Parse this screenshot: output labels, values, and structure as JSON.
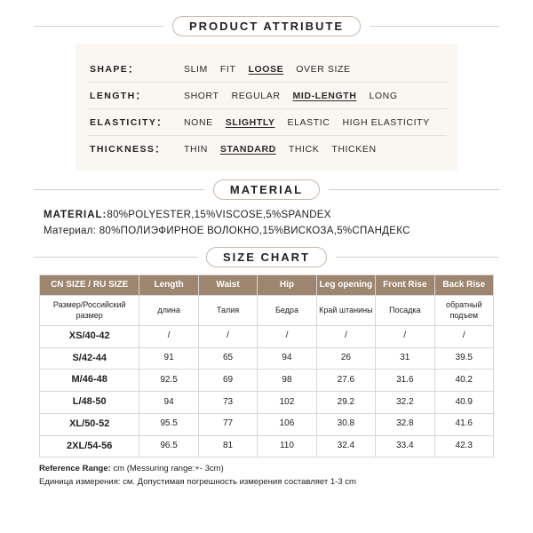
{
  "sections": {
    "attribute_title": "PRODUCT ATTRIBUTE",
    "material_title": "MATERIAL",
    "size_title": "SIZE CHART"
  },
  "attributes": {
    "shape": {
      "label": "SHAPE：",
      "opts": [
        "SLIM",
        "FIT",
        "LOOSE",
        "OVER SIZE"
      ],
      "selected": 2
    },
    "length": {
      "label": "LENGTH：",
      "opts": [
        "SHORT",
        "REGULAR",
        "MID-LENGTH",
        "LONG"
      ],
      "selected": 2
    },
    "elasticity": {
      "label": "ELASTICITY：",
      "opts": [
        "NONE",
        "SLIGHTLY",
        "ELASTIC",
        "HIGH ELASTICITY"
      ],
      "selected": 1
    },
    "thickness": {
      "label": "THICKNESS：",
      "opts": [
        "THIN",
        "STANDARD",
        "THICK",
        "THICKEN"
      ],
      "selected": 1
    }
  },
  "material": {
    "en_label": "MATERIAL:",
    "en_value": "80%POLYESTER,15%VISCOSE,5%SPANDEX",
    "ru_label": "Материал:",
    "ru_value": " 80%ПОЛИЭФИРНОЕ ВОЛОКНО,15%ВИСКОЗА,5%СПАНДЕКС"
  },
  "size_chart": {
    "headers_en": [
      "CN SIZE / RU SIZE",
      "Length",
      "Waist",
      "Hip",
      "Leg opening",
      "Front Rise",
      "Back Rise"
    ],
    "headers_ru": [
      "Размер/Российский размер",
      "длина",
      "Талия",
      "Бедра",
      "Край штанины",
      "Посадка",
      "обратный подъем"
    ],
    "col_widths_pct": [
      22,
      13,
      13,
      13,
      13,
      13,
      13
    ],
    "rows": [
      {
        "size": "XS/40-42",
        "vals": [
          "/",
          "/",
          "/",
          "/",
          "/",
          "/"
        ]
      },
      {
        "size": "S/42-44",
        "vals": [
          "91",
          "65",
          "94",
          "26",
          "31",
          "39.5"
        ]
      },
      {
        "size": "M/46-48",
        "vals": [
          "92.5",
          "69",
          "98",
          "27.6",
          "31.6",
          "40.2"
        ]
      },
      {
        "size": "L/48-50",
        "vals": [
          "94",
          "73",
          "102",
          "29.2",
          "32.2",
          "40.9"
        ]
      },
      {
        "size": "XL/50-52",
        "vals": [
          "95.5",
          "77",
          "106",
          "30.8",
          "32.8",
          "41.6"
        ]
      },
      {
        "size": "2XL/54-56",
        "vals": [
          "96.5",
          "81",
          "110",
          "32.4",
          "33.4",
          "42.3"
        ]
      }
    ]
  },
  "reference": {
    "en_label": "Reference Range:",
    "en_value": " cm (Messuring range:+- 3cm)",
    "ru": "Единица измерения: см. Допустимая погрешность измерения составляет 1-3 cm"
  },
  "colors": {
    "background": "#ffffff",
    "attr_panel_bg": "#faf6f1",
    "pill_border": "#c9b8aa",
    "table_header_bg": "#9d8570",
    "table_header_fg": "#ffffff",
    "divider": "#cfcfcf",
    "cell_border": "#d7d7d7"
  }
}
